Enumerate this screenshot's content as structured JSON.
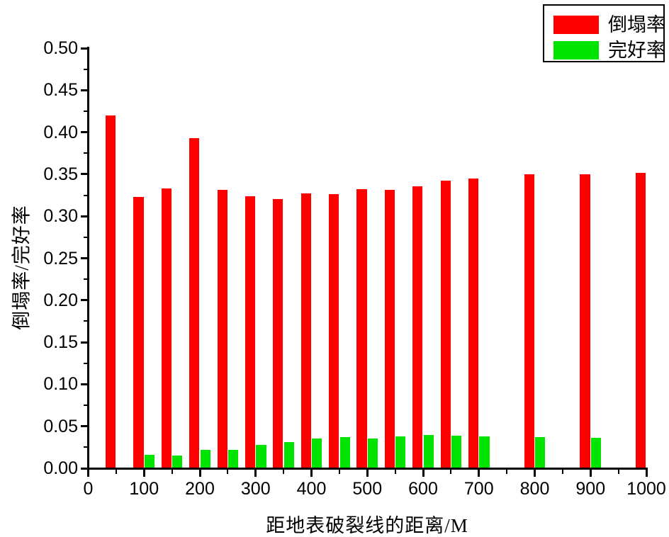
{
  "chart_data": {
    "type": "bar",
    "title": "",
    "xlabel": "距地表破裂线的距离/M",
    "ylabel": "倒塌率/完好率",
    "categories": [
      50,
      100,
      150,
      200,
      250,
      300,
      350,
      400,
      450,
      500,
      550,
      600,
      650,
      700,
      800,
      900,
      1000
    ],
    "series": [
      {
        "name": "倒塌率",
        "color": "#ff0000",
        "values": [
          0.42,
          0.323,
          0.333,
          0.393,
          0.331,
          0.324,
          0.32,
          0.327,
          0.326,
          0.332,
          0.331,
          0.336,
          0.342,
          0.345,
          0.35,
          0.35,
          0.352
        ]
      },
      {
        "name": "完好率",
        "color": "#00e400",
        "values": [
          0,
          0.016,
          0.015,
          0.022,
          0.022,
          0.028,
          0.031,
          0.035,
          0.037,
          0.035,
          0.038,
          0.04,
          0.039,
          0.038,
          0.037,
          0.036,
          0
        ]
      }
    ],
    "xlim": [
      0,
      1000
    ],
    "ylim": [
      0,
      0.5
    ],
    "x_major_ticks": [
      0,
      100,
      200,
      300,
      400,
      500,
      600,
      700,
      800,
      900,
      1000
    ],
    "x_minor_step": 50,
    "y_major_ticks": [
      0.0,
      0.05,
      0.1,
      0.15,
      0.2,
      0.25,
      0.3,
      0.35,
      0.4,
      0.45,
      0.5
    ],
    "y_minor_step": 0.025,
    "y_tick_decimals": 2,
    "bar_width_units": 18,
    "grid": false,
    "legend_position": "top-right"
  }
}
